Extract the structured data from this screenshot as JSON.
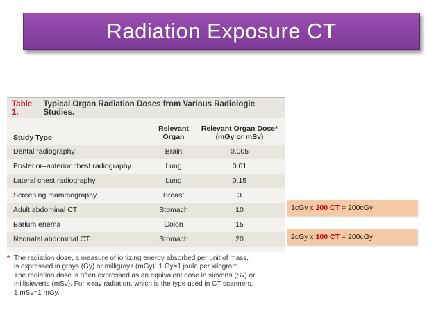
{
  "slide": {
    "title": "Radiation Exposure CT"
  },
  "table": {
    "caption_num": "Table 1.",
    "caption_text": "Typical Organ Radiation Doses from Various Radiologic Studies.",
    "headers": {
      "type": "Study Type",
      "organ_line1": "Relevant",
      "organ_line2": "Organ",
      "dose_line1": "Relevant Organ Dose*",
      "dose_line2": "(mGy or mSv)"
    },
    "rows": [
      {
        "type": "Dental radiography",
        "organ": "Brain",
        "dose": "0.005"
      },
      {
        "type": "Posterior–anterior chest radiography",
        "organ": "Lung",
        "dose": "0.01"
      },
      {
        "type": "Lateral chest radiography",
        "organ": "Lung",
        "dose": "0.15"
      },
      {
        "type": "Screening mammography",
        "organ": "Breast",
        "dose": "3"
      },
      {
        "type": "Adult abdominal CT",
        "organ": "Stomach",
        "dose": "10"
      },
      {
        "type": "Barium enema",
        "organ": "Colon",
        "dose": "15"
      },
      {
        "type": "Neonatal abdominal CT",
        "organ": "Stomach",
        "dose": "20"
      }
    ],
    "footnote_star": "*",
    "footnote_lines": [
      "The radiation dose, a measure of ionizing energy absorbed per unit of mass,",
      "is expressed in grays (Gy) or milligrays (mGy); 1 Gy=1 joule per kilogram.",
      "The radiation dose is often expressed as an equivalent dose in sieverts (Sv) or",
      "millisieverts (mSv). For x-ray radiation, which is the type used in CT scanners,",
      "1 mSv=1 mGy."
    ]
  },
  "callouts": [
    {
      "pre": "1cGy x ",
      "ct": "200 CT",
      "post": " = 200cGy"
    },
    {
      "pre": "2cGy x ",
      "ct": "100 CT",
      "post": " = 200cGy"
    }
  ],
  "colors": {
    "title_bg": "#8a45a3",
    "callout_bg": "#f5c9a6",
    "accent_red": "#c00000"
  }
}
